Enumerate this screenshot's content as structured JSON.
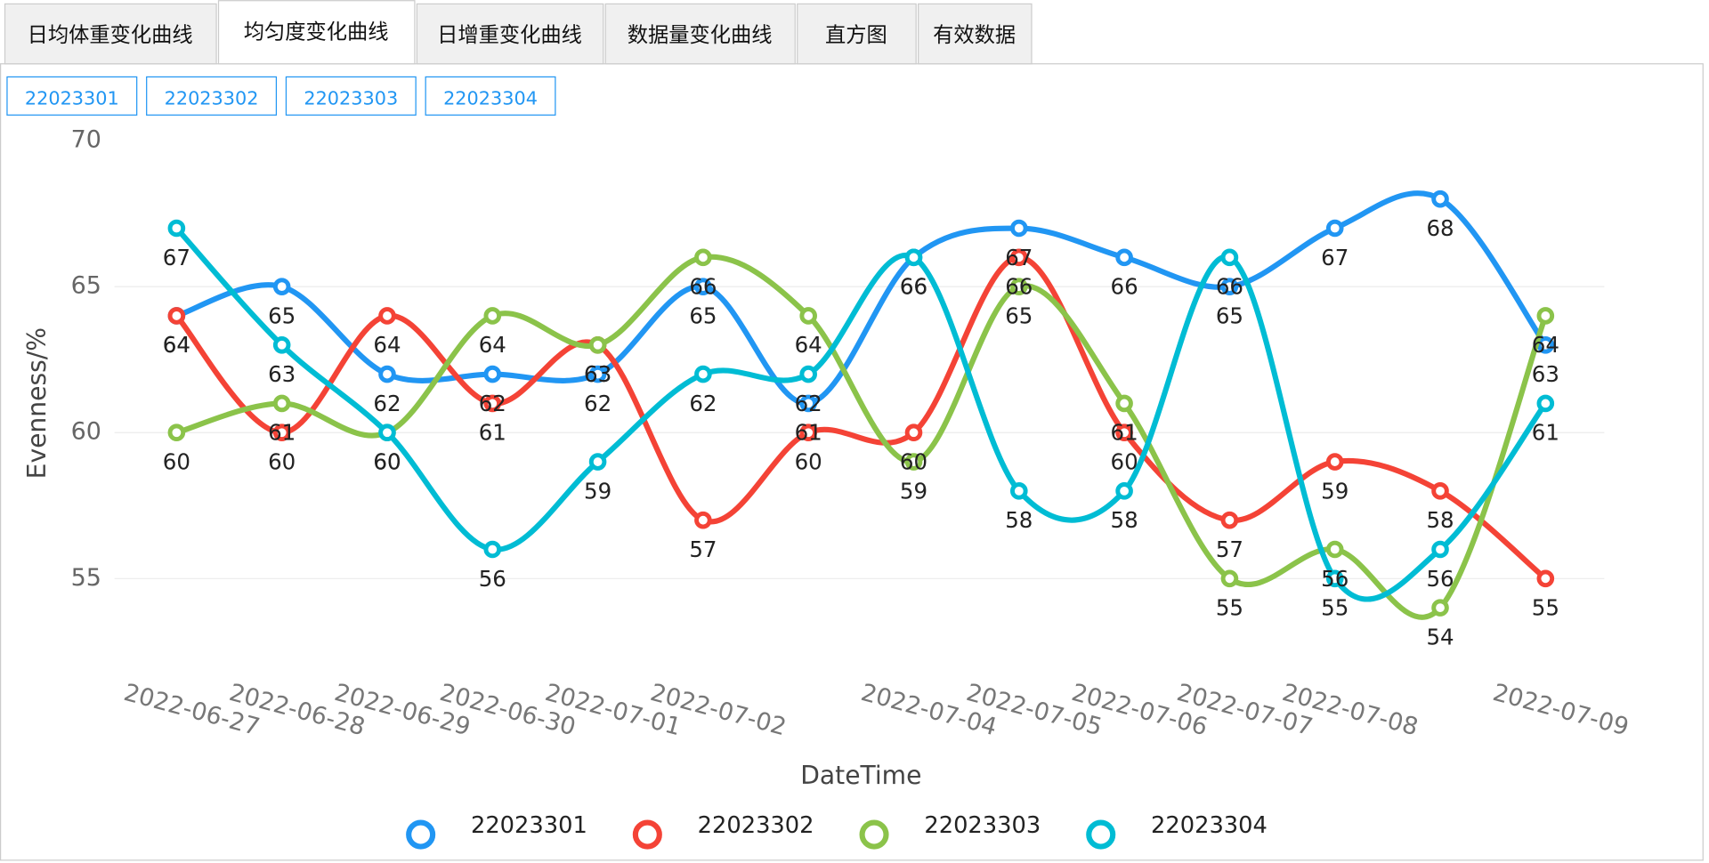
{
  "tabs": [
    "日均体重变化曲线",
    "均匀度变化曲线",
    "日增重变化曲线",
    "数据量变化曲线",
    "直方图",
    "有效数据"
  ],
  "buttons": [
    "22023301",
    "22023302",
    "22023303",
    "22023304"
  ],
  "chart_data": {
    "type": "line",
    "y_label": "Evenness/%",
    "x_label": "DateTime",
    "categories": [
      "2022-06-27",
      "2022-06-28",
      "2022-06-29",
      "2022-06-30",
      "2022-07-01",
      "2022-07-02",
      null,
      "2022-07-04",
      "2022-07-05",
      "2022-07-06",
      "2022-07-07",
      "2022-07-08",
      null,
      "2022-07-09"
    ],
    "series": [
      {
        "name": "22023301",
        "color": "#2196f3",
        "values": [
          64,
          65,
          62,
          62,
          62,
          65,
          61,
          66,
          67,
          66,
          65,
          67,
          68,
          63
        ]
      },
      {
        "name": "22023302",
        "color": "#f44336",
        "values": [
          64,
          60,
          64,
          61,
          63,
          57,
          60,
          60,
          66,
          60,
          57,
          59,
          58,
          55
        ]
      },
      {
        "name": "22023303",
        "color": "#8bc34a",
        "values": [
          60,
          61,
          60,
          64,
          63,
          66,
          64,
          59,
          65,
          61,
          55,
          56,
          54,
          64
        ]
      },
      {
        "name": "22023304",
        "color": "#00bcd4",
        "values": [
          67,
          63,
          60,
          56,
          59,
          62,
          62,
          66,
          58,
          58,
          66,
          55,
          56,
          61
        ]
      }
    ],
    "ylim": [
      53,
      70
    ],
    "yticks": [
      55,
      60,
      65,
      70
    ],
    "grid": true,
    "legend": "bottom"
  }
}
